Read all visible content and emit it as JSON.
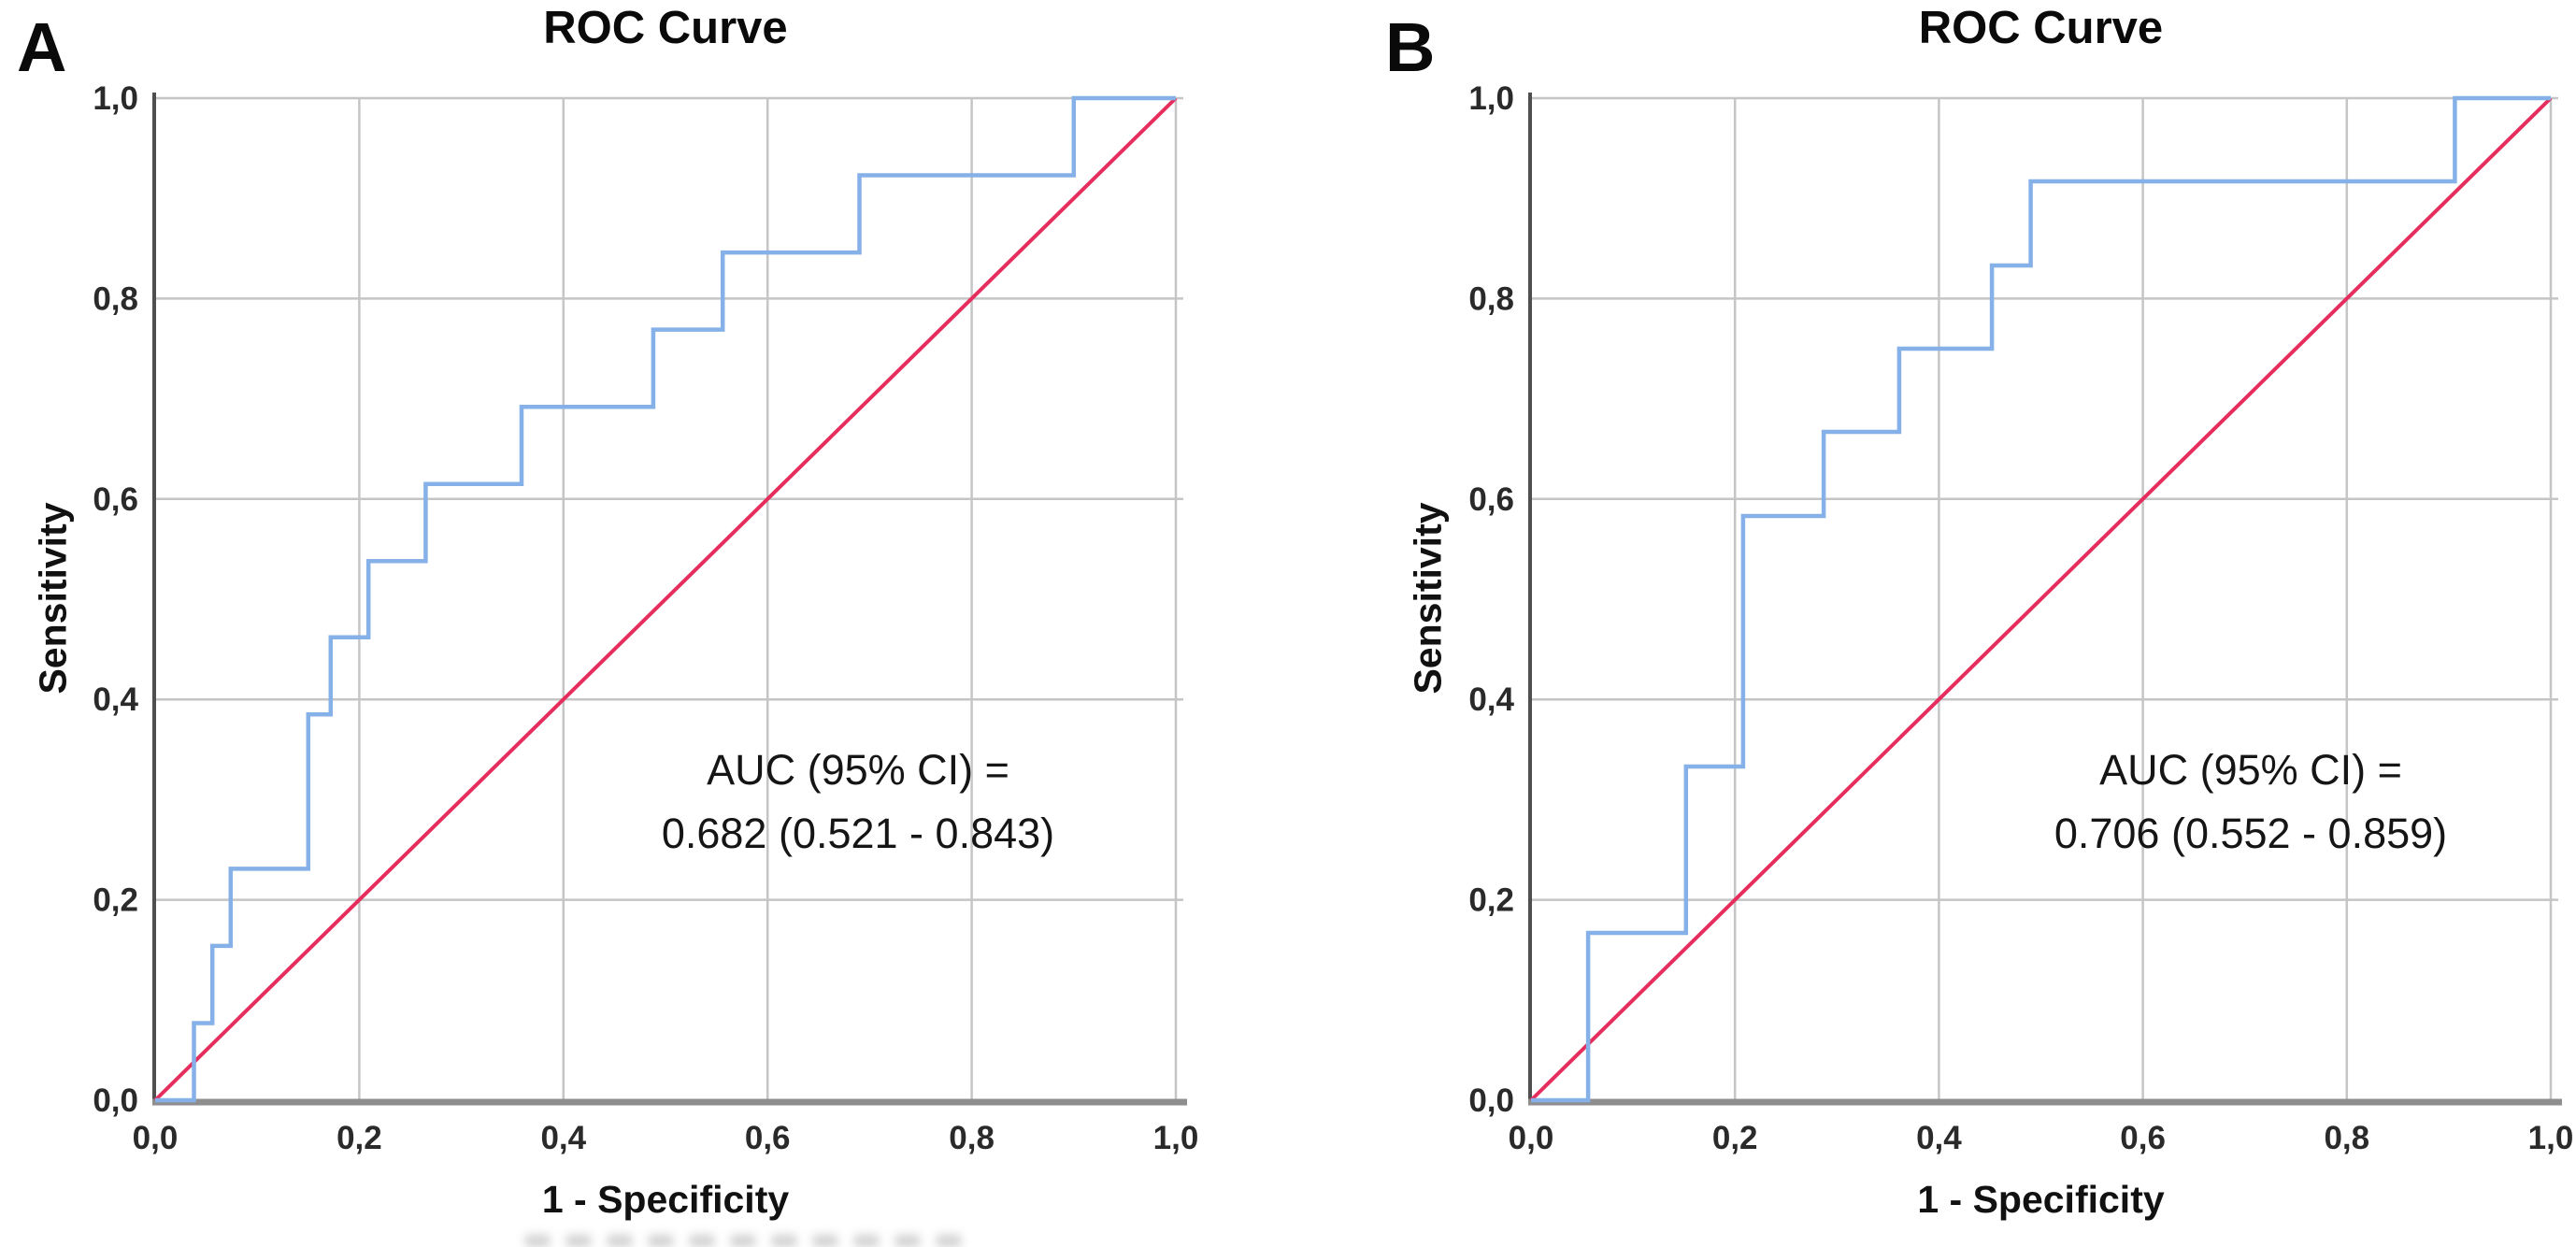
{
  "figure": {
    "background": "#ffffff",
    "description_colors": {
      "roc_curve": "#85b0e8",
      "reference_line": "#e62e5e",
      "gridline": "#c5c5c5",
      "y_axis": "#4f4f4f",
      "x_baseline": "#8e8e8e",
      "tick_text": "#2a2a2a",
      "title_text": "#0a0a0a"
    }
  },
  "chart_data": [
    {
      "panel_label": "A",
      "type": "line",
      "subtype": "roc-step",
      "title": "ROC Curve",
      "xlabel": "1 - Specificity",
      "ylabel": "Sensitivity",
      "xlim": [
        0,
        1
      ],
      "ylim": [
        0,
        1
      ],
      "grid": true,
      "x_ticks": {
        "values": [
          0,
          0.2,
          0.4,
          0.6,
          0.8,
          1.0
        ],
        "labels": [
          "0,0",
          "0,2",
          "0,4",
          "0,6",
          "0,8",
          "1,0"
        ]
      },
      "y_ticks": {
        "values": [
          0,
          0.2,
          0.4,
          0.6,
          0.8,
          1.0
        ],
        "labels": [
          "0,0",
          "0,2",
          "0,4",
          "0,6",
          "0,8",
          "1,0"
        ]
      },
      "annotation": {
        "line1": "AUC (95% CI) =",
        "line2": "0.682 (0.521 - 0.843)"
      },
      "auc": 0.682,
      "ci_low": 0.521,
      "ci_high": 0.843,
      "series": [
        {
          "name": "ROC curve",
          "role": "data",
          "color": "#85b0e8",
          "width": 4.5,
          "points": [
            [
              0,
              0
            ],
            [
              0.038,
              0
            ],
            [
              0.038,
              0.077
            ],
            [
              0.056,
              0.077
            ],
            [
              0.056,
              0.154
            ],
            [
              0.074,
              0.154
            ],
            [
              0.074,
              0.231
            ],
            [
              0.15,
              0.231
            ],
            [
              0.15,
              0.385
            ],
            [
              0.172,
              0.385
            ],
            [
              0.172,
              0.462
            ],
            [
              0.209,
              0.462
            ],
            [
              0.209,
              0.538
            ],
            [
              0.265,
              0.538
            ],
            [
              0.265,
              0.615
            ],
            [
              0.359,
              0.615
            ],
            [
              0.359,
              0.692
            ],
            [
              0.488,
              0.692
            ],
            [
              0.488,
              0.769
            ],
            [
              0.556,
              0.769
            ],
            [
              0.556,
              0.846
            ],
            [
              0.69,
              0.846
            ],
            [
              0.69,
              0.923
            ],
            [
              0.9,
              0.923
            ],
            [
              0.9,
              1.0
            ],
            [
              1.0,
              1.0
            ]
          ]
        },
        {
          "name": "Reference line",
          "role": "reference",
          "color": "#e62e5e",
          "width": 4,
          "points": [
            [
              0,
              0
            ],
            [
              1,
              1
            ]
          ]
        }
      ]
    },
    {
      "panel_label": "B",
      "type": "line",
      "subtype": "roc-step",
      "title": "ROC Curve",
      "xlabel": "1 - Specificity",
      "ylabel": "Sensitivity",
      "xlim": [
        0,
        1
      ],
      "ylim": [
        0,
        1
      ],
      "grid": true,
      "x_ticks": {
        "values": [
          0,
          0.2,
          0.4,
          0.6,
          0.8,
          1.0
        ],
        "labels": [
          "0,0",
          "0,2",
          "0,4",
          "0,6",
          "0,8",
          "1,0"
        ]
      },
      "y_ticks": {
        "values": [
          0,
          0.2,
          0.4,
          0.6,
          0.8,
          1.0
        ],
        "labels": [
          "0,0",
          "0,2",
          "0,4",
          "0,6",
          "0,8",
          "1,0"
        ]
      },
      "annotation": {
        "line1": "AUC (95% CI) =",
        "line2": "0.706 (0.552 - 0.859)"
      },
      "auc": 0.706,
      "ci_low": 0.552,
      "ci_high": 0.859,
      "series": [
        {
          "name": "ROC curve",
          "role": "data",
          "color": "#85b0e8",
          "width": 4.5,
          "points": [
            [
              0,
              0
            ],
            [
              0.056,
              0
            ],
            [
              0.056,
              0.167
            ],
            [
              0.152,
              0.167
            ],
            [
              0.152,
              0.333
            ],
            [
              0.208,
              0.333
            ],
            [
              0.208,
              0.583
            ],
            [
              0.287,
              0.583
            ],
            [
              0.287,
              0.667
            ],
            [
              0.361,
              0.667
            ],
            [
              0.361,
              0.75
            ],
            [
              0.452,
              0.75
            ],
            [
              0.452,
              0.833
            ],
            [
              0.49,
              0.833
            ],
            [
              0.49,
              0.917
            ],
            [
              0.906,
              0.917
            ],
            [
              0.906,
              1.0
            ],
            [
              1.0,
              1.0
            ]
          ]
        },
        {
          "name": "Reference line",
          "role": "reference",
          "color": "#e62e5e",
          "width": 4,
          "points": [
            [
              0,
              0
            ],
            [
              1,
              1
            ]
          ]
        }
      ]
    }
  ]
}
